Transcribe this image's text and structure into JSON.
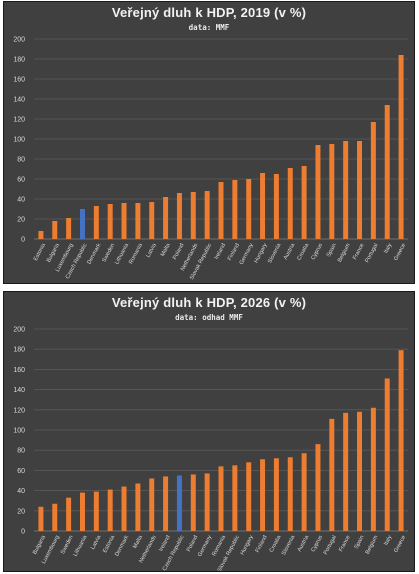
{
  "chart_data": [
    {
      "type": "bar",
      "title": "Veřejný dluh k HDP, 2019 (v %)",
      "subtitle": "data: MMF",
      "ylim": [
        0,
        200
      ],
      "yticks": [
        0,
        20,
        40,
        60,
        80,
        100,
        120,
        140,
        160,
        180,
        200
      ],
      "grid": true,
      "categories": [
        "Estonia",
        "Bulgaria",
        "Luxembourg",
        "Czech Republic",
        "Denmark",
        "Sweden",
        "Lithuania",
        "Romania",
        "Latvia",
        "Malta",
        "Poland",
        "Netherlands",
        "Slovak Republic",
        "Ireland",
        "Finland",
        "Germany",
        "Hungary",
        "Slovenia",
        "Austria",
        "Croatia",
        "Cyprus",
        "Spain",
        "Belgium",
        "France",
        "Portugal",
        "Italy",
        "Greece"
      ],
      "values": [
        8,
        18,
        21,
        30,
        33,
        35,
        36,
        36,
        37,
        42,
        46,
        47,
        48,
        57,
        59,
        60,
        66,
        65,
        71,
        73,
        94,
        95,
        98,
        98,
        117,
        134,
        184
      ],
      "highlight": "Czech Republic",
      "colors": {
        "bar": "#ed7d31",
        "highlight": "#4472c4",
        "grid": "#5a5a5a",
        "background": "#404040"
      }
    },
    {
      "type": "bar",
      "title": "Veřejný dluh k HDP, 2026 (v %)",
      "subtitle": "data: odhad MMF",
      "ylim": [
        0,
        200
      ],
      "yticks": [
        0,
        20,
        40,
        60,
        80,
        100,
        120,
        140,
        160,
        180,
        200
      ],
      "grid": true,
      "categories": [
        "Bulgaria",
        "Luxembourg",
        "Sweden",
        "Lithuania",
        "Latvia",
        "Estonia",
        "Denmark",
        "Malta",
        "Netherlands",
        "Ireland",
        "Czech Republic",
        "Poland",
        "Germany",
        "Romania",
        "Slovak Republic",
        "Hungary",
        "Finland",
        "Croatia",
        "Slovenia",
        "Austria",
        "Cyprus",
        "Portugal",
        "France",
        "Spain",
        "Belgium",
        "Italy",
        "Greece"
      ],
      "values": [
        24,
        27,
        33,
        38,
        39,
        41,
        44,
        47,
        52,
        54,
        55,
        56,
        57,
        64,
        65,
        68,
        71,
        72,
        73,
        77,
        86,
        111,
        117,
        118,
        122,
        151,
        179
      ],
      "highlight": "Czech Republic",
      "colors": {
        "bar": "#ed7d31",
        "highlight": "#4472c4",
        "grid": "#5a5a5a",
        "background": "#404040"
      }
    }
  ]
}
